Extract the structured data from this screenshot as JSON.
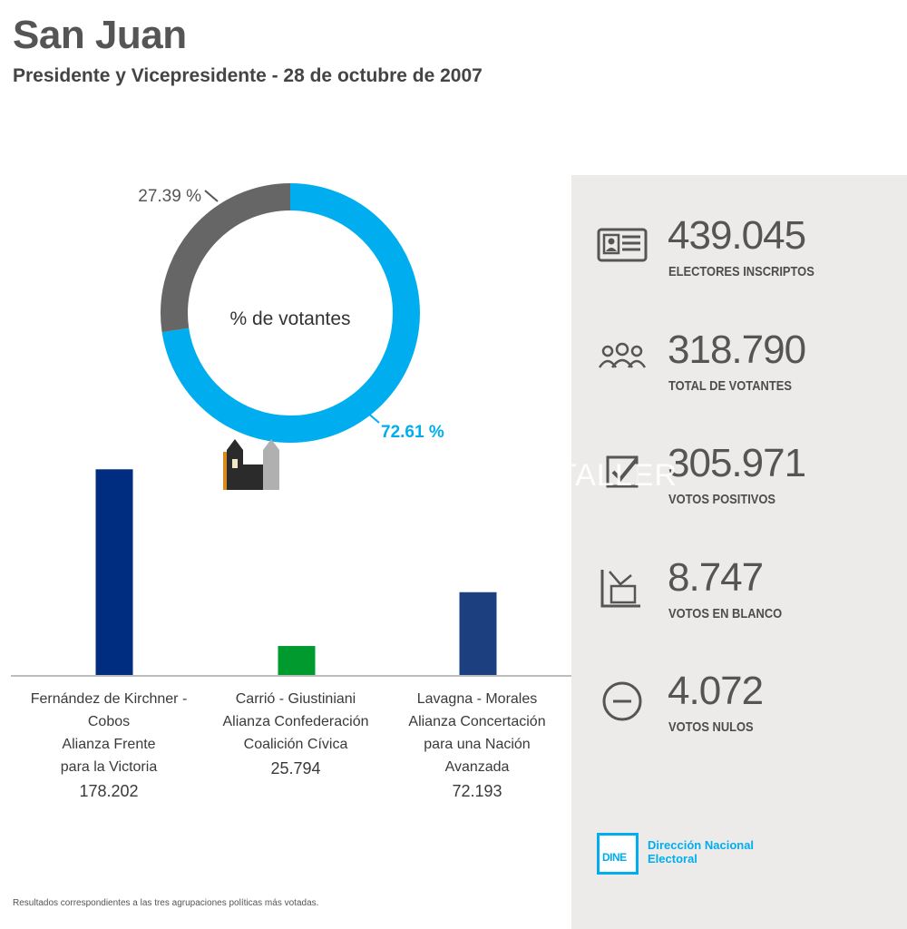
{
  "header": {
    "title": "San Juan",
    "subtitle": "Presidente y Vicepresidente - 28 de octubre de 2007"
  },
  "chart_data": [
    {
      "type": "pie",
      "center_label": "% de votantes",
      "slices": [
        {
          "value": 72.61,
          "label": "72.61 %",
          "color": "#00aeef"
        },
        {
          "value": 27.39,
          "label": "27.39 %",
          "color": "#666666"
        }
      ]
    },
    {
      "type": "bar",
      "categories": [
        "Fernández de Kirchner - Cobos\nAlianza Frente\npara la Victoria",
        "Carrió - Giustiniani\nAlianza Confederación\nCoalición Cívica",
        "Lavagna - Morales\nAlianza Concertación\npara una Nación\nAvanzada"
      ],
      "values": [
        178202,
        25794,
        72193
      ],
      "value_labels": [
        "178.202",
        "25.794",
        "72.193"
      ],
      "colors": [
        "#002d80",
        "#009a2e",
        "#1c3f7f"
      ],
      "ylim": [
        0,
        180000
      ]
    }
  ],
  "stats": [
    {
      "value": "439.045",
      "label": "ELECTORES INSCRIPTOS",
      "icon": "id-card-icon"
    },
    {
      "value": "318.790",
      "label": "TOTAL DE VOTANTES",
      "icon": "people-icon"
    },
    {
      "value": "305.971",
      "label": "VOTOS POSITIVOS",
      "icon": "checkbox-icon"
    },
    {
      "value": "8.747",
      "label": "VOTOS EN BLANCO",
      "icon": "ballot-box-icon"
    },
    {
      "value": "4.072",
      "label": "VOTOS NULOS",
      "icon": "minus-circle-icon"
    }
  ],
  "logo": {
    "badge": "DINE",
    "name": "Dirección Nacional\nElectoral"
  },
  "watermark": {
    "text": "TALLER"
  },
  "footnote": "Resultados correspondientes a las tres agrupaciones políticas más votadas."
}
